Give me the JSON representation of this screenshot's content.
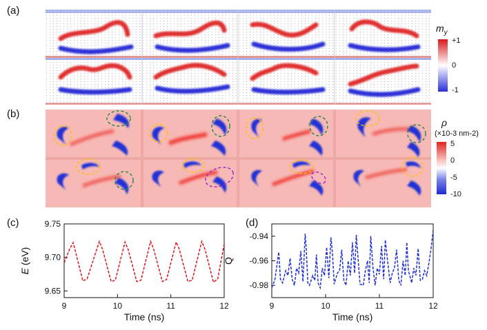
{
  "panels": {
    "a": {
      "label": "(a)",
      "cbar_title_base": "m",
      "cbar_title_sub": "y",
      "cbar_ticks": [
        "+1",
        "0",
        "-1"
      ],
      "cbar_values": [
        1,
        0,
        -1
      ],
      "colors": {
        "high": "#d7191c",
        "mid": "#ffffff",
        "low": "#2b2fd8"
      }
    },
    "b": {
      "label": "(b)",
      "cbar_title": "ρ",
      "cbar_unit": "(×10-3 nm-2)",
      "cbar_ticks": [
        "5",
        "0",
        "-5",
        "-10"
      ],
      "cbar_values": [
        5,
        0,
        -5,
        -10
      ],
      "colors": {
        "background": "#f7b9b6",
        "high": "#e3221e",
        "low": "#1d2bd6",
        "circle_yellow": "#ffc000",
        "circle_green": "#1b8a3a",
        "circle_purple": "#9a1fd1"
      }
    },
    "c": {
      "label": "(c)"
    },
    "d": {
      "label": "(d)"
    }
  },
  "chart_data": [
    {
      "panel": "(c)",
      "type": "line",
      "xlabel": "Time (ns)",
      "ylabel_var": "E",
      "ylabel_unit": "(eV)",
      "xlim": [
        9,
        12
      ],
      "ylim": [
        9.64,
        9.75
      ],
      "xticks": [
        "9",
        "10",
        "11",
        "12"
      ],
      "yticks": [
        "9.65",
        "9.70",
        "9.75"
      ],
      "color": "#d7191c",
      "series": [
        {
          "name": "E",
          "x": [
            9.0,
            9.1,
            9.17,
            9.35,
            9.43,
            9.66,
            9.72,
            9.88,
            9.96,
            10.14,
            10.2,
            10.36,
            10.44,
            10.62,
            10.68,
            10.84,
            10.92,
            11.1,
            11.16,
            11.32,
            11.4,
            11.58,
            11.64,
            11.8,
            11.88,
            12.0
          ],
          "values": [
            9.692,
            9.712,
            9.722,
            9.665,
            9.668,
            9.724,
            9.712,
            9.664,
            9.666,
            9.723,
            9.712,
            9.664,
            9.666,
            9.724,
            9.712,
            9.664,
            9.667,
            9.723,
            9.712,
            9.664,
            9.666,
            9.724,
            9.712,
            9.663,
            9.668,
            9.72
          ]
        }
      ]
    },
    {
      "panel": "(d)",
      "type": "line",
      "xlabel": "Time (ns)",
      "ylabel": "Q",
      "xlim": [
        9,
        12
      ],
      "ylim": [
        -0.99,
        -0.93
      ],
      "xticks": [
        "9",
        "10",
        "11",
        "12"
      ],
      "yticks": [
        "-0.94",
        "-0.96",
        "-0.98"
      ],
      "color": "#1f2fd0",
      "series": [
        {
          "name": "Q",
          "x": [
            9.0,
            9.06,
            9.1,
            9.13,
            9.16,
            9.2,
            9.26,
            9.3,
            9.34,
            9.38,
            9.42,
            9.46,
            9.5,
            9.54,
            9.58,
            9.62,
            9.64,
            9.67,
            9.7,
            9.76,
            9.8,
            9.83,
            9.86,
            9.9,
            9.94,
            9.98,
            10.02,
            10.06,
            10.1,
            10.13,
            10.16,
            10.22,
            10.26,
            10.3,
            10.34,
            10.38,
            10.42,
            10.46,
            10.5,
            10.54,
            10.57,
            10.6,
            10.64,
            10.7,
            10.74,
            10.78,
            10.81,
            10.84,
            10.88,
            10.92,
            10.96,
            11.0,
            11.04,
            11.08,
            11.11,
            11.14,
            11.2,
            11.24,
            11.28,
            11.32,
            11.36,
            11.4,
            11.44,
            11.48,
            11.51,
            11.54,
            11.6,
            11.64,
            11.68,
            11.72,
            11.76,
            11.8,
            11.84,
            11.88,
            11.92,
            11.96,
            12.0
          ],
          "values": [
            -0.982,
            -0.975,
            -0.962,
            -0.953,
            -0.975,
            -0.978,
            -0.968,
            -0.972,
            -0.958,
            -0.975,
            -0.98,
            -0.966,
            -0.97,
            -0.952,
            -0.977,
            -0.938,
            -0.95,
            -0.978,
            -0.98,
            -0.972,
            -0.976,
            -0.955,
            -0.978,
            -0.982,
            -0.966,
            -0.972,
            -0.949,
            -0.974,
            -0.941,
            -0.955,
            -0.979,
            -0.97,
            -0.968,
            -0.951,
            -0.976,
            -0.98,
            -0.96,
            -0.972,
            -0.945,
            -0.97,
            -0.939,
            -0.956,
            -0.979,
            -0.98,
            -0.968,
            -0.96,
            -0.978,
            -0.94,
            -0.965,
            -0.98,
            -0.966,
            -0.971,
            -0.948,
            -0.975,
            -0.943,
            -0.955,
            -0.978,
            -0.97,
            -0.966,
            -0.951,
            -0.976,
            -0.98,
            -0.96,
            -0.972,
            -0.945,
            -0.968,
            -0.978,
            -0.966,
            -0.972,
            -0.95,
            -0.976,
            -0.975,
            -0.968,
            -0.972,
            -0.962,
            -0.95,
            -0.935
          ]
        }
      ]
    }
  ]
}
